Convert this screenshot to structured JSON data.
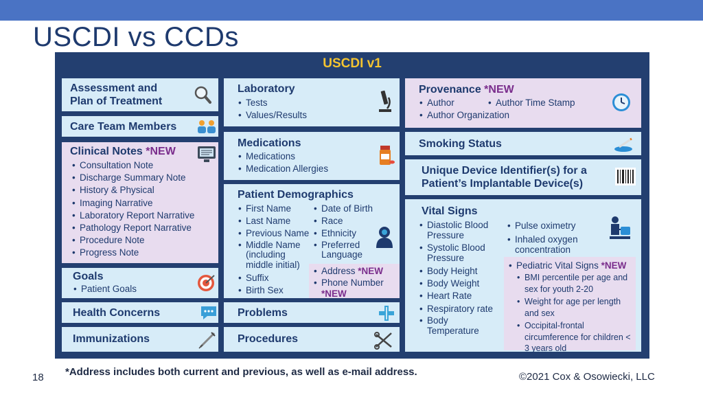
{
  "slide": {
    "title": "USCDI vs CCDs",
    "page_number": "18",
    "footnote": "*Address includes both current and previous, as well as e-mail address.",
    "copyright": "©2021 Cox & Osowiecki, LLC"
  },
  "panel": {
    "header": "USCDI v1",
    "new_tag": "*NEW",
    "assessment": {
      "title_line1": "Assessment and",
      "title_line2": "Plan of Treatment"
    },
    "care_team": {
      "title": "Care Team Members"
    },
    "clinical_notes": {
      "title": "Clinical Notes",
      "items": [
        "Consultation Note",
        "Discharge Summary Note",
        "History & Physical",
        "Imaging Narrative",
        "Laboratory Report Narrative",
        "Pathology Report Narrative",
        "Procedure Note",
        "Progress Note"
      ]
    },
    "goals": {
      "title": "Goals",
      "items": [
        "Patient Goals"
      ]
    },
    "health_concerns": {
      "title": "Health Concerns"
    },
    "immunizations": {
      "title": "Immunizations"
    },
    "laboratory": {
      "title": "Laboratory",
      "items": [
        "Tests",
        "Values/Results"
      ]
    },
    "medications": {
      "title": "Medications",
      "items": [
        "Medications",
        "Medication Allergies"
      ]
    },
    "demographics": {
      "title": "Patient Demographics",
      "left_items": [
        "First Name",
        "Last Name",
        "Previous Name",
        "Middle Name (including middle initial)",
        "Suffix",
        "Birth Sex"
      ],
      "right_items": [
        "Date of Birth",
        "Race",
        "Ethnicity",
        "Preferred Language"
      ],
      "new_items": [
        "Address",
        "Phone Number"
      ]
    },
    "problems": {
      "title": "Problems"
    },
    "procedures": {
      "title": "Procedures"
    },
    "provenance": {
      "title": "Provenance",
      "items": [
        "Author",
        "Author Time Stamp",
        "Author Organization"
      ]
    },
    "smoking": {
      "title": "Smoking Status"
    },
    "udi": {
      "title_line1": "Unique Device Identifier(s) for a",
      "title_line2": "Patient’s Implantable Device(s)"
    },
    "vitals": {
      "title": "Vital Signs",
      "left_items": [
        "Diastolic Blood Pressure",
        "Systolic Blood Pressure",
        "Body Height",
        "Body Weight",
        "Heart Rate",
        "Respiratory rate",
        "Body Temperature"
      ],
      "right_items": [
        "Pulse oximetry",
        "Inhaled oxygen concentration"
      ],
      "pediatric_title": "Pediatric Vital Signs",
      "pediatric_items": [
        "BMI percentile per age and sex for youth 2-20",
        "Weight for age per length and sex",
        "Occipital-frontal circumference for children < 3 years old"
      ]
    }
  },
  "colors": {
    "topbar": "#4a73c4",
    "panel": "#233f70",
    "header": "#f4c430",
    "box_blue": "#d7ecf8",
    "box_lavender": "#e8dcef",
    "new": "#7a2d8c",
    "text": "#1e3a6e"
  },
  "icons": [
    "magnifier-icon",
    "people-icon",
    "monitor-icon",
    "target-icon",
    "chat-bubble-icon",
    "syringe-icon",
    "microscope-icon",
    "pill-bottle-icon",
    "patient-icon",
    "caduceus-icon",
    "surgical-tools-icon",
    "clock-icon",
    "ashtray-icon",
    "barcode-icon",
    "bp-cuff-icon"
  ]
}
